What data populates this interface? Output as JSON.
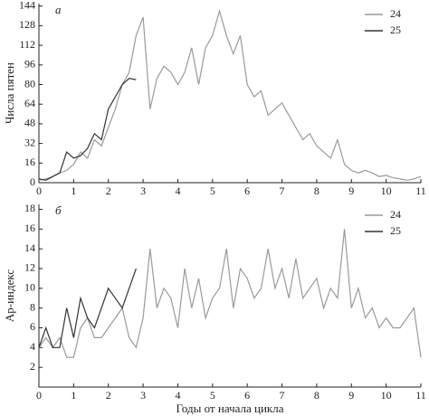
{
  "chart_data": [
    {
      "type": "line",
      "panel": "а",
      "ylabel": "Числа пятен",
      "x": [
        0,
        0.2,
        0.4,
        0.6,
        0.8,
        1.0,
        1.2,
        1.4,
        1.6,
        1.8,
        2.0,
        2.2,
        2.4,
        2.6,
        2.8,
        3.0,
        3.2,
        3.4,
        3.6,
        3.8,
        4.0,
        4.2,
        4.4,
        4.6,
        4.8,
        5.0,
        5.2,
        5.4,
        5.6,
        5.8,
        6.0,
        6.2,
        6.4,
        6.6,
        6.8,
        7.0,
        7.2,
        7.4,
        7.6,
        7.8,
        8.0,
        8.2,
        8.4,
        8.6,
        8.8,
        9.0,
        9.2,
        9.4,
        9.6,
        9.8,
        10.0,
        10.2,
        10.4,
        10.6,
        10.8,
        11.0
      ],
      "series": [
        {
          "name": "24",
          "color": "#9a9a9a",
          "values": [
            2,
            3,
            5,
            8,
            10,
            15,
            25,
            20,
            35,
            30,
            45,
            60,
            80,
            90,
            120,
            135,
            60,
            85,
            95,
            90,
            80,
            90,
            110,
            80,
            110,
            120,
            140,
            120,
            105,
            120,
            80,
            70,
            75,
            55,
            60,
            65,
            55,
            45,
            35,
            40,
            30,
            25,
            20,
            35,
            15,
            10,
            8,
            10,
            8,
            5,
            6,
            4,
            3,
            2,
            3,
            5
          ]
        },
        {
          "name": "25",
          "color": "#333333",
          "values": [
            3,
            2,
            5,
            8,
            25,
            20,
            22,
            28,
            40,
            35,
            60,
            70,
            80,
            85,
            84,
            null,
            null,
            null,
            null,
            null,
            null,
            null,
            null,
            null,
            null,
            null,
            null,
            null,
            null,
            null,
            null,
            null,
            null,
            null,
            null,
            null,
            null,
            null,
            null,
            null,
            null,
            null,
            null,
            null,
            null,
            null,
            null,
            null,
            null,
            null,
            null,
            null,
            null,
            null,
            null,
            null
          ]
        }
      ],
      "xlim": [
        0,
        11
      ],
      "xticks": [
        0,
        1,
        2,
        3,
        4,
        5,
        6,
        7,
        8,
        9,
        10,
        11
      ],
      "ylim": [
        0,
        146
      ],
      "yticks": [
        0,
        16,
        32,
        48,
        64,
        80,
        96,
        112,
        128,
        144
      ],
      "legend": "upper right"
    },
    {
      "type": "line",
      "panel": "б",
      "ylabel": "Ap-индекс",
      "xlabel": "Годы от начала цикла",
      "x": [
        0,
        0.2,
        0.4,
        0.6,
        0.8,
        1.0,
        1.2,
        1.4,
        1.6,
        1.8,
        2.0,
        2.2,
        2.4,
        2.6,
        2.8,
        3.0,
        3.2,
        3.4,
        3.6,
        3.8,
        4.0,
        4.2,
        4.4,
        4.6,
        4.8,
        5.0,
        5.2,
        5.4,
        5.6,
        5.8,
        6.0,
        6.2,
        6.4,
        6.6,
        6.8,
        7.0,
        7.2,
        7.4,
        7.6,
        7.8,
        8.0,
        8.2,
        8.4,
        8.6,
        8.8,
        9.0,
        9.2,
        9.4,
        9.6,
        9.8,
        10.0,
        10.2,
        10.4,
        10.6,
        10.8,
        11.0
      ],
      "series": [
        {
          "name": "24",
          "color": "#9a9a9a",
          "values": [
            4,
            5,
            4,
            5,
            3,
            3,
            6,
            7,
            5,
            5,
            6,
            7,
            8,
            5,
            4,
            7,
            14,
            8,
            10,
            9,
            6,
            12,
            8,
            11,
            7,
            9,
            10,
            14,
            8,
            12,
            11,
            9,
            10,
            14,
            10,
            12,
            9,
            13,
            9,
            10,
            11,
            8,
            10,
            9,
            16,
            8,
            10,
            7,
            8,
            6,
            7,
            6,
            6,
            7,
            8,
            3
          ]
        },
        {
          "name": "25",
          "color": "#333333",
          "values": [
            4,
            6,
            4,
            4,
            8,
            5,
            9,
            7,
            6,
            8,
            10,
            9,
            8,
            10,
            12,
            null,
            null,
            null,
            null,
            null,
            null,
            null,
            null,
            null,
            null,
            null,
            null,
            null,
            null,
            null,
            null,
            null,
            null,
            null,
            null,
            null,
            null,
            null,
            null,
            null,
            null,
            null,
            null,
            null,
            null,
            null,
            null,
            null,
            null,
            null,
            null,
            null,
            null,
            null,
            null,
            null
          ]
        }
      ],
      "xlim": [
        0,
        11
      ],
      "xticks": [
        0,
        1,
        2,
        3,
        4,
        5,
        6,
        7,
        8,
        9,
        10,
        11
      ],
      "ylim": [
        0,
        18.5
      ],
      "yticks": [
        2,
        4,
        6,
        8,
        10,
        12,
        14,
        16,
        18
      ],
      "legend": "upper right"
    }
  ]
}
